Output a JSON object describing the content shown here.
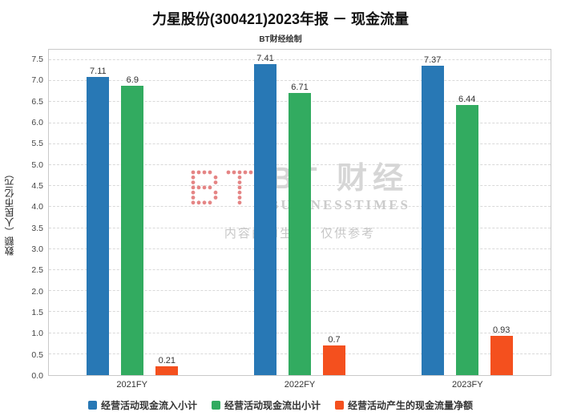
{
  "title": "力星股份(300421)2023年报 － 现金流量",
  "subtitle": "BT财经绘制",
  "watermark": {
    "logo_icon": "bt-dot-matrix-logo",
    "logo_text": "BT 财经",
    "logo_sub": "BUSINESSTIMES",
    "disclaimer": "内容由AI生成，仅供参考"
  },
  "chart_data": {
    "type": "bar",
    "title": "力星股份(300421)2023年报 － 现金流量",
    "subtitle": "BT财经绘制",
    "categories": [
      "2021FY",
      "2022FY",
      "2023FY"
    ],
    "series": [
      {
        "name": "经营活动现金流入小计",
        "color": "#2878b5",
        "values": [
          7.11,
          7.41,
          7.37
        ]
      },
      {
        "name": "经营活动现金流出小计",
        "color": "#32ab60",
        "values": [
          6.9,
          6.71,
          6.44
        ]
      },
      {
        "name": "经营活动产生的现金流量净额",
        "color": "#f4501e",
        "values": [
          0.21,
          0.7,
          0.93
        ]
      }
    ],
    "xlabel": "",
    "ylabel": "数额（人民币亿元）",
    "ylim": [
      0,
      7.75
    ],
    "yticks": [
      0.0,
      0.5,
      1.0,
      1.5,
      2.0,
      2.5,
      3.0,
      3.5,
      4.0,
      4.5,
      5.0,
      5.5,
      6.0,
      6.5,
      7.0,
      7.5
    ],
    "grid": true,
    "grid_style": "dashed",
    "legend_position": "bottom",
    "value_labels": true
  }
}
